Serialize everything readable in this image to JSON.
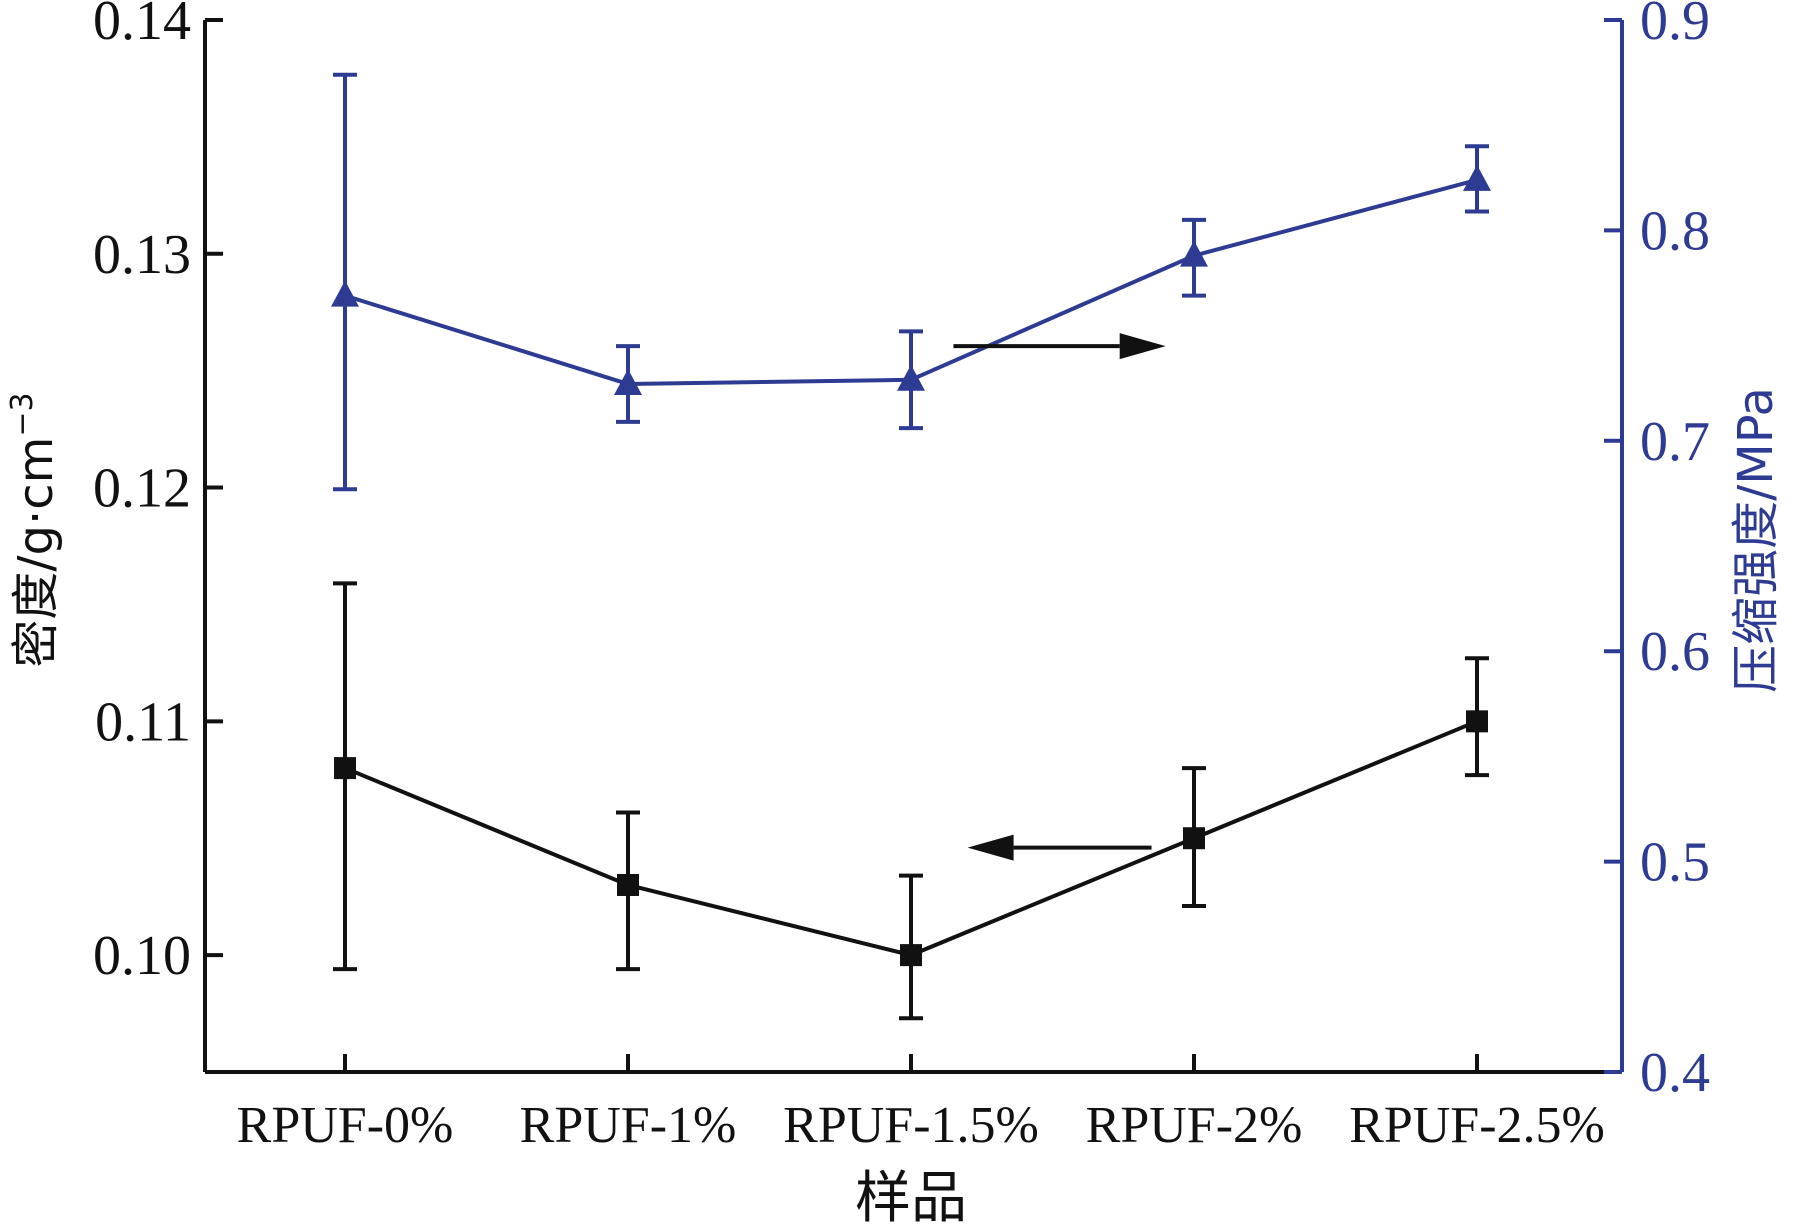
{
  "chart_data": {
    "type": "line",
    "categories": [
      "RPUF-0%",
      "RPUF-1%",
      "RPUF-1.5%",
      "RPUF-2%",
      "RPUF-2.5%"
    ],
    "xlabel": "样品",
    "y_left": {
      "label_main": "密度/g·cm",
      "label_sup": "−3",
      "range": [
        0.095,
        0.14
      ],
      "ticks": [
        "0.10",
        "0.11",
        "0.12",
        "0.13",
        "0.14"
      ],
      "color": "#111111"
    },
    "y_right": {
      "label": "压缩强度/MPa",
      "range": [
        0.4,
        0.9
      ],
      "ticks": [
        "0.4",
        "0.5",
        "0.6",
        "0.7",
        "0.8",
        "0.9"
      ],
      "color": "#2e3b93"
    },
    "series": [
      {
        "axis": "left",
        "marker": "square",
        "color": "#111111",
        "values": [
          0.108,
          0.103,
          0.1,
          0.105,
          0.11
        ],
        "err_low": [
          0.0994,
          0.0994,
          0.0973,
          0.1021,
          0.1077
        ],
        "err_high": [
          0.1159,
          0.1061,
          0.1034,
          0.108,
          0.1127
        ]
      },
      {
        "axis": "right",
        "marker": "triangle",
        "color": "#2e3b93",
        "values": [
          0.769,
          0.727,
          0.729,
          0.788,
          0.824
        ],
        "err_low": [
          0.677,
          0.709,
          0.706,
          0.769,
          0.809
        ],
        "err_high": [
          0.874,
          0.745,
          0.752,
          0.805,
          0.84
        ]
      }
    ],
    "arrows": [
      {
        "series": 1,
        "direction": "right",
        "x_from": 2.15,
        "x_to": 2.9,
        "value": 0.745
      },
      {
        "series": 0,
        "direction": "left",
        "x_from": 2.85,
        "x_to": 2.2,
        "value": 0.1046
      }
    ],
    "grid": false,
    "legend": "none"
  }
}
